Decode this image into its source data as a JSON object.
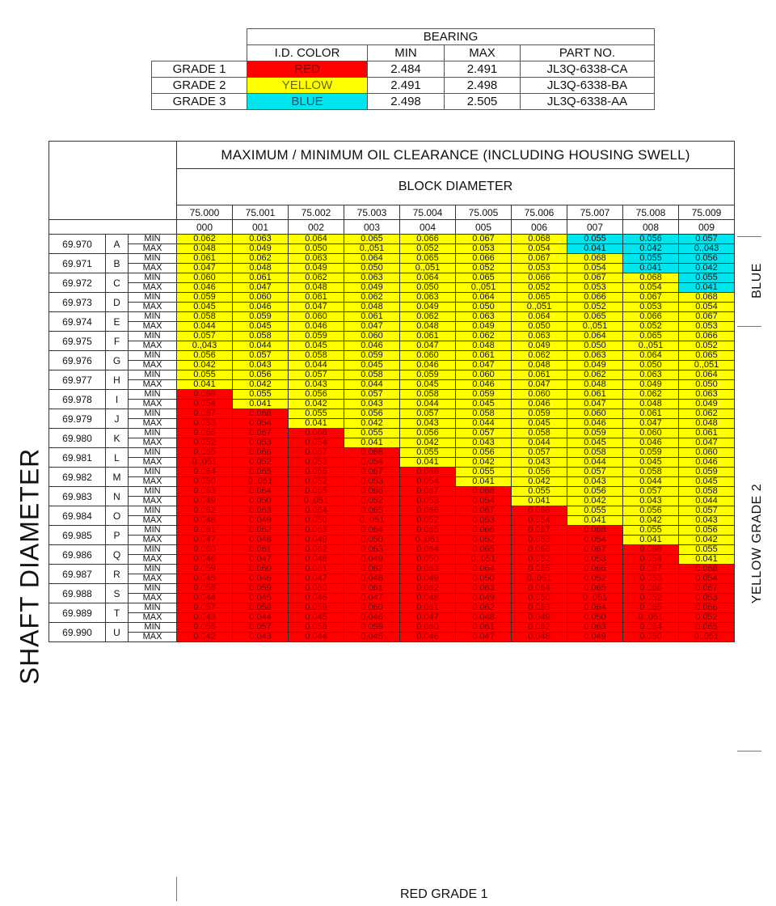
{
  "bearing": {
    "title": "BEARING",
    "headers": [
      "I.D. COLOR",
      "MIN",
      "MAX",
      "PART NO."
    ],
    "grades": [
      {
        "grade": "GRADE 1",
        "color": "RED",
        "bg": "#ff0000",
        "text_color": "#8b0000",
        "min": "2.484",
        "max": "2.491",
        "part": "JL3Q-6338-CA"
      },
      {
        "grade": "GRADE 2",
        "color": "YELLOW",
        "bg": "#ffff00",
        "text_color": "#6b6b00",
        "min": "2.491",
        "max": "2.498",
        "part": "JL3Q-6338-BA"
      },
      {
        "grade": "GRADE 3",
        "color": "BLUE",
        "bg": "#00e5ee",
        "text_color": "#0a5a66",
        "min": "2.498",
        "max": "2.505",
        "part": "JL3Q-6338-AA"
      }
    ]
  },
  "clearance": {
    "title": "MAXIMUM / MINIMUM OIL CLEARANCE (INCLUDING HOUSING SWELL)",
    "subtitle": "BLOCK DIAMETER",
    "block_diameters": [
      "75.000",
      "75.001",
      "75.002",
      "75.003",
      "75.004",
      "75.005",
      "75.006",
      "75.007",
      "75.008",
      "75.009"
    ],
    "block_codes": [
      "000",
      "001",
      "002",
      "003",
      "004",
      "005",
      "006",
      "007",
      "008",
      "009"
    ],
    "min_label": "MIN",
    "max_label": "MAX",
    "rows": [
      {
        "shaft": "69.970",
        "letter": "A",
        "min": [
          "0.062",
          "0.063",
          "0.064",
          "0.065",
          "0.066",
          "0.067",
          "0.068",
          "0.055",
          "0.056",
          "0.057"
        ],
        "max": [
          "0.048",
          "0.049",
          "0.050",
          "0.,051",
          "0.052",
          "0.053",
          "0.054",
          "0.041",
          "0.042",
          "0.,043"
        ],
        "grades": [
          "Y",
          "Y",
          "Y",
          "Y",
          "Y",
          "Y",
          "Y",
          "B",
          "B",
          "B"
        ]
      },
      {
        "shaft": "69.971",
        "letter": "B",
        "min": [
          "0.061",
          "0.062",
          "0.063",
          "0.064",
          "0.065",
          "0.066",
          "0.067",
          "0.068",
          "0.055",
          "0.056"
        ],
        "max": [
          "0.047",
          "0.048",
          "0.049",
          "0.050",
          "0.,051",
          "0.052",
          "0.053",
          "0.054",
          "0.041",
          "0.042"
        ],
        "grades": [
          "Y",
          "Y",
          "Y",
          "Y",
          "Y",
          "Y",
          "Y",
          "Y",
          "B",
          "B"
        ]
      },
      {
        "shaft": "69.972",
        "letter": "C",
        "min": [
          "0.060",
          "0.061",
          "0.062",
          "0.063",
          "0.064",
          "0.065",
          "0.066",
          "0.067",
          "0.068",
          "0.055"
        ],
        "max": [
          "0.046",
          "0.047",
          "0.048",
          "0.049",
          "0.050",
          "0.,051",
          "0.052",
          "0.053",
          "0.054",
          "0.041"
        ],
        "grades": [
          "Y",
          "Y",
          "Y",
          "Y",
          "Y",
          "Y",
          "Y",
          "Y",
          "Y",
          "B"
        ]
      },
      {
        "shaft": "69.973",
        "letter": "D",
        "min": [
          "0.059",
          "0.060",
          "0.061",
          "0.062",
          "0.063",
          "0.064",
          "0.065",
          "0.066",
          "0.067",
          "0.068"
        ],
        "max": [
          "0.045",
          "0.046",
          "0.047",
          "0.048",
          "0.049",
          "0.050",
          "0.,051",
          "0.052",
          "0.053",
          "0.054"
        ],
        "grades": [
          "Y",
          "Y",
          "Y",
          "Y",
          "Y",
          "Y",
          "Y",
          "Y",
          "Y",
          "Y"
        ]
      },
      {
        "shaft": "69.974",
        "letter": "E",
        "min": [
          "0.058",
          "0.059",
          "0.060",
          "0.061",
          "0.062",
          "0.063",
          "0.064",
          "0.065",
          "0.066",
          "0.067"
        ],
        "max": [
          "0.044",
          "0.045",
          "0.046",
          "0.047",
          "0.048",
          "0.049",
          "0.050",
          "0.,051",
          "0.052",
          "0.053"
        ],
        "grades": [
          "Y",
          "Y",
          "Y",
          "Y",
          "Y",
          "Y",
          "Y",
          "Y",
          "Y",
          "Y"
        ]
      },
      {
        "shaft": "69.975",
        "letter": "F",
        "min": [
          "0.057",
          "0.058",
          "0.059",
          "0.060",
          "0.061",
          "0.062",
          "0.063",
          "0.064",
          "0.065",
          "0.066"
        ],
        "max": [
          "0.,043",
          "0.044",
          "0.045",
          "0.046",
          "0.047",
          "0.048",
          "0.049",
          "0.050",
          "0.,051",
          "0.052"
        ],
        "grades": [
          "Y",
          "Y",
          "Y",
          "Y",
          "Y",
          "Y",
          "Y",
          "Y",
          "Y",
          "Y"
        ]
      },
      {
        "shaft": "69.976",
        "letter": "G",
        "min": [
          "0.056",
          "0.057",
          "0.058",
          "0.059",
          "0.060",
          "0.061",
          "0.062",
          "0.063",
          "0.064",
          "0.065"
        ],
        "max": [
          "0.042",
          "0.043",
          "0.044",
          "0.045",
          "0.046",
          "0.047",
          "0.048",
          "0.049",
          "0.050",
          "0.,051"
        ],
        "grades": [
          "Y",
          "Y",
          "Y",
          "Y",
          "Y",
          "Y",
          "Y",
          "Y",
          "Y",
          "Y"
        ]
      },
      {
        "shaft": "69.977",
        "letter": "H",
        "min": [
          "0.055",
          "0.056",
          "0.057",
          "0.058",
          "0.059",
          "0.060",
          "0.061",
          "0.062",
          "0.063",
          "0.064"
        ],
        "max": [
          "0.041",
          "0.042",
          "0.043",
          "0.044",
          "0.045",
          "0.046",
          "0.047",
          "0.048",
          "0.049",
          "0.050"
        ],
        "grades": [
          "Y",
          "Y",
          "Y",
          "Y",
          "Y",
          "Y",
          "Y",
          "Y",
          "Y",
          "Y"
        ]
      },
      {
        "shaft": "69.978",
        "letter": "I",
        "min": [
          "0.068",
          "0.055",
          "0.056",
          "0.057",
          "0.058",
          "0.059",
          "0.060",
          "0.061",
          "0.062",
          "0.063"
        ],
        "max": [
          "0.054",
          "0.041",
          "0.042",
          "0.043",
          "0.044",
          "0.045",
          "0.046",
          "0.047",
          "0.048",
          "0.049"
        ],
        "grades": [
          "R",
          "Y",
          "Y",
          "Y",
          "Y",
          "Y",
          "Y",
          "Y",
          "Y",
          "Y"
        ]
      },
      {
        "shaft": "69.979",
        "letter": "J",
        "min": [
          "0.067",
          "0.068",
          "0.055",
          "0.056",
          "0.057",
          "0.058",
          "0.059",
          "0.060",
          "0.061",
          "0.062"
        ],
        "max": [
          "0.053",
          "0.054",
          "0.041",
          "0.042",
          "0.043",
          "0.044",
          "0.045",
          "0.046",
          "0.047",
          "0.048"
        ],
        "grades": [
          "R",
          "R",
          "Y",
          "Y",
          "Y",
          "Y",
          "Y",
          "Y",
          "Y",
          "Y"
        ]
      },
      {
        "shaft": "69.980",
        "letter": "K",
        "min": [
          "0.066",
          "0.067",
          "0.068",
          "0.055",
          "0.056",
          "0.057",
          "0.058",
          "0.059",
          "0.060",
          "0.061"
        ],
        "max": [
          "0.052",
          "0.053",
          "0.054",
          "0.041",
          "0.042",
          "0.043",
          "0.044",
          "0.045",
          "0.046",
          "0.047"
        ],
        "grades": [
          "R",
          "R",
          "R",
          "Y",
          "Y",
          "Y",
          "Y",
          "Y",
          "Y",
          "Y"
        ]
      },
      {
        "shaft": "69.981",
        "letter": "L",
        "min": [
          "0.065",
          "0.066",
          "0.067",
          "0.068",
          "0.055",
          "0.056",
          "0.057",
          "0.058",
          "0.059",
          "0.060"
        ],
        "max": [
          "0.,051",
          "0.052",
          "0.053",
          "0.054",
          "0.041",
          "0.042",
          "0.043",
          "0.044",
          "0.045",
          "0.046"
        ],
        "grades": [
          "R",
          "R",
          "R",
          "R",
          "Y",
          "Y",
          "Y",
          "Y",
          "Y",
          "Y"
        ]
      },
      {
        "shaft": "69.982",
        "letter": "M",
        "min": [
          "0.064",
          "0.065",
          "0.066",
          "0.067",
          "0.068",
          "0.055",
          "0.056",
          "0.057",
          "0.058",
          "0.059"
        ],
        "max": [
          "0.050",
          "0.,051",
          "0.052",
          "0.053",
          "0.054",
          "0.041",
          "0.042",
          "0.043",
          "0.044",
          "0.045"
        ],
        "grades": [
          "R",
          "R",
          "R",
          "R",
          "R",
          "Y",
          "Y",
          "Y",
          "Y",
          "Y"
        ]
      },
      {
        "shaft": "69.983",
        "letter": "N",
        "min": [
          "0.063",
          "0.064",
          "0.065",
          "0.066",
          "0.067",
          "0.068",
          "0.055",
          "0.056",
          "0.057",
          "0.058"
        ],
        "max": [
          "0.049",
          "0.050",
          "0.,051",
          "0.052",
          "0.053",
          "0.054",
          "0.041",
          "0.042",
          "0.043",
          "0.044"
        ],
        "grades": [
          "R",
          "R",
          "R",
          "R",
          "R",
          "R",
          "Y",
          "Y",
          "Y",
          "Y"
        ]
      },
      {
        "shaft": "69.984",
        "letter": "O",
        "min": [
          "0.062",
          "0.063",
          "0.064",
          "0.065",
          "0.066",
          "0.067",
          "0.068",
          "0.055",
          "0.056",
          "0.057"
        ],
        "max": [
          "0.048",
          "0.049",
          "0.050",
          "0.,051",
          "0.052",
          "0.053",
          "0.054",
          "0.041",
          "0.042",
          "0.043"
        ],
        "grades": [
          "R",
          "R",
          "R",
          "R",
          "R",
          "R",
          "R",
          "Y",
          "Y",
          "Y"
        ]
      },
      {
        "shaft": "69.985",
        "letter": "P",
        "min": [
          "0.061",
          "0.062",
          "0.063",
          "0.064",
          "0.065",
          "0.066",
          "0.067",
          "0.068",
          "0.055",
          "0.056"
        ],
        "max": [
          "0.047",
          "0.048",
          "0.049",
          "0.050",
          "0.,051",
          "0.052",
          "0.053",
          "0.054",
          "0.041",
          "0.042"
        ],
        "grades": [
          "R",
          "R",
          "R",
          "R",
          "R",
          "R",
          "R",
          "R",
          "Y",
          "Y"
        ]
      },
      {
        "shaft": "69.986",
        "letter": "Q",
        "min": [
          "0.060",
          "0.061",
          "0.062",
          "0.063",
          "0.064",
          "0.065",
          "0.066",
          "0.067",
          "0.068",
          "0.055"
        ],
        "max": [
          "0.046",
          "0.047",
          "0.048",
          "0.049",
          "0.050",
          "0.,051",
          "0.052",
          "0.053",
          "0.054",
          "0.041"
        ],
        "grades": [
          "R",
          "R",
          "R",
          "R",
          "R",
          "R",
          "R",
          "R",
          "R",
          "Y"
        ]
      },
      {
        "shaft": "69.987",
        "letter": "R",
        "min": [
          "0.059",
          "0.060",
          "0.061",
          "0.062",
          "0.063",
          "0.064",
          "0.065",
          "0.066",
          "0.067",
          "0.068"
        ],
        "max": [
          "0.045",
          "0.046",
          "0.047",
          "0.048",
          "0.049",
          "0.050",
          "0.,051",
          "0.052",
          "0.053",
          "0.054"
        ],
        "grades": [
          "R",
          "R",
          "R",
          "R",
          "R",
          "R",
          "R",
          "R",
          "R",
          "R"
        ]
      },
      {
        "shaft": "69.988",
        "letter": "S",
        "min": [
          "0.058",
          "0.059",
          "0.060",
          "0.061",
          "0.062",
          "0.063",
          "0.064",
          "0.065",
          "0.066",
          "0.067"
        ],
        "max": [
          "0.044",
          "0.045",
          "0.046",
          "0.047",
          "0.048",
          "0.049",
          "0.050",
          "0.,051",
          "0.052",
          "0.053"
        ],
        "grades": [
          "R",
          "R",
          "R",
          "R",
          "R",
          "R",
          "R",
          "R",
          "R",
          "R"
        ]
      },
      {
        "shaft": "69.989",
        "letter": "T",
        "min": [
          "0.057",
          "0.058",
          "0.059",
          "0.060",
          "0.061",
          "0.062",
          "0.063",
          "0.064",
          "0.065",
          "0.066"
        ],
        "max": [
          "0.043",
          "0.044",
          "0.045",
          "0.046",
          "0.047",
          "0.048",
          "0.049",
          "0.050",
          "0.,051",
          "0.052"
        ],
        "grades": [
          "R",
          "R",
          "R",
          "R",
          "R",
          "R",
          "R",
          "R",
          "R",
          "R"
        ]
      },
      {
        "shaft": "69.990",
        "letter": "U",
        "min": [
          "0.056",
          "0.057",
          "0.058",
          "0.059",
          "0.060",
          "0.061",
          "0.062",
          "0.063",
          "0.064",
          "0.065"
        ],
        "max": [
          "0.042",
          "0.043",
          "0.044",
          "0.045",
          "0.046",
          "0.047",
          "0.048",
          "0.049",
          "0.050",
          "0.,051"
        ],
        "grades": [
          "R",
          "R",
          "R",
          "R",
          "R",
          "R",
          "R",
          "R",
          "R",
          "R"
        ]
      }
    ]
  },
  "labels": {
    "shaft_diameter": "SHAFT DIAMETER",
    "blue": "BLUE",
    "yellow_grade2": "YELLOW GRADE 2",
    "red_grade1": "RED GRADE 1"
  },
  "colors": {
    "red": "#ff0000",
    "yellow": "#ffff00",
    "blue": "#00e5ee"
  }
}
